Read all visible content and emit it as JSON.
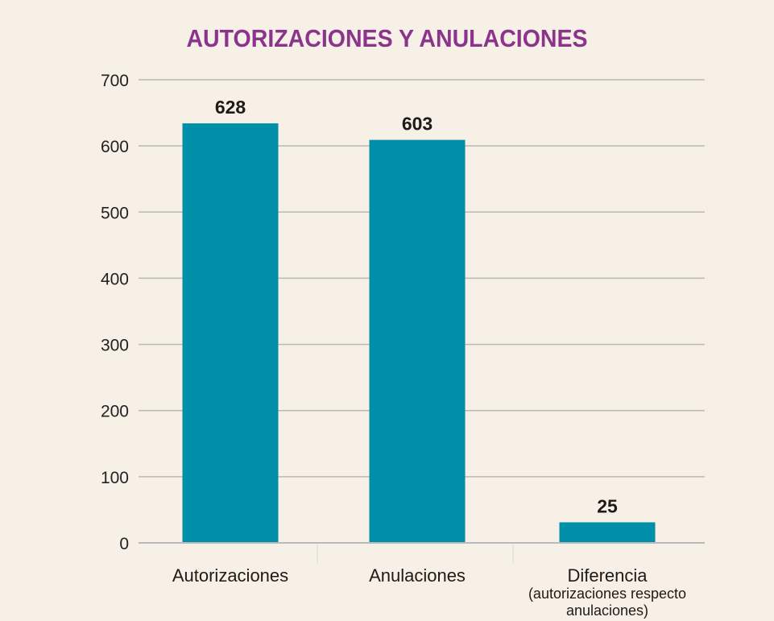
{
  "chart_data": {
    "type": "bar",
    "title": "AUTORIZACIONES Y ANULACIONES",
    "categories": [
      "Autorizaciones",
      "Anulaciones",
      "Diferencia"
    ],
    "category_sublabels": [
      "",
      "",
      "(autorizaciones respecto|anulaciones)"
    ],
    "values": [
      628,
      603,
      25
    ],
    "data_labels": [
      "628",
      "603",
      "25"
    ],
    "xlabel": "",
    "ylabel": "",
    "ylim": [
      0,
      700
    ],
    "yticks": [
      0,
      100,
      200,
      300,
      400,
      500,
      600,
      700
    ],
    "grid": true,
    "legend": "none",
    "colors": {
      "bar": "#008ea8",
      "title": "#8b348c",
      "grid": "#b9b9bb",
      "background": "#f7f0e6"
    }
  }
}
